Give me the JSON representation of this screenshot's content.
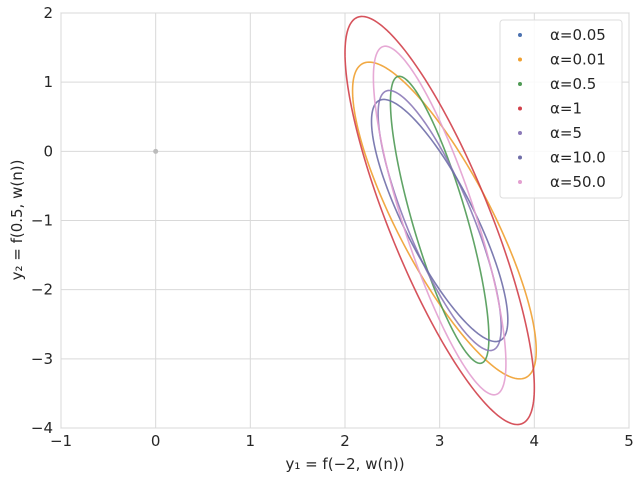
{
  "chart_data": {
    "type": "line",
    "title": "",
    "xlabel": "y₁ = f(−2, w(n))",
    "ylabel": "y₂ = f(0.5, w(n))",
    "xlim": [
      -1,
      5
    ],
    "ylim": [
      -4,
      2
    ],
    "xticks": [
      "−1",
      "0",
      "1",
      "2",
      "3",
      "4",
      "5"
    ],
    "yticks": [
      "−4",
      "−3",
      "−2",
      "−1",
      "0",
      "1",
      "2"
    ],
    "grid": true,
    "legend_position": "top-right",
    "reference_point": {
      "x": 0,
      "y": 0,
      "color": "#bbbbbb"
    },
    "series": [
      {
        "name": "α=0.05",
        "color": "#4c72b0",
        "center": [
          3.0,
          -0.88
        ],
        "x_extent": [
          2.4,
          3.6
        ],
        "y_extent": [
          -2.3,
          0.6
        ],
        "visible": false
      },
      {
        "name": "α=0.01",
        "color": "#f0a030",
        "center": [
          3.05,
          -1.0
        ],
        "x_extent": [
          2.08,
          4.02
        ],
        "y_extent": [
          -3.28,
          1.3
        ]
      },
      {
        "name": "α=0.5",
        "color": "#4f9a55",
        "center": [
          3.0,
          -0.99
        ],
        "x_extent": [
          2.48,
          3.52
        ],
        "y_extent": [
          -3.06,
          1.09
        ]
      },
      {
        "name": "α=1",
        "color": "#d1404a",
        "center": [
          3.0,
          -1.0
        ],
        "x_extent": [
          2.0,
          4.0
        ],
        "y_extent": [
          -3.95,
          1.95
        ]
      },
      {
        "name": "α=5",
        "color": "#8c7ab8",
        "center": [
          3.0,
          -1.0
        ],
        "x_extent": [
          2.35,
          3.65
        ],
        "y_extent": [
          -2.88,
          0.88
        ]
      },
      {
        "name": "α=10.0",
        "color": "#6f6ea8",
        "center": [
          3.0,
          -1.0
        ],
        "x_extent": [
          2.28,
          3.72
        ],
        "y_extent": [
          -2.75,
          0.75
        ]
      },
      {
        "name": "α=50.0",
        "color": "#e3a0d0",
        "center": [
          3.0,
          -1.0
        ],
        "x_extent": [
          2.3,
          3.7
        ],
        "y_extent": [
          -3.52,
          1.52
        ]
      }
    ]
  }
}
